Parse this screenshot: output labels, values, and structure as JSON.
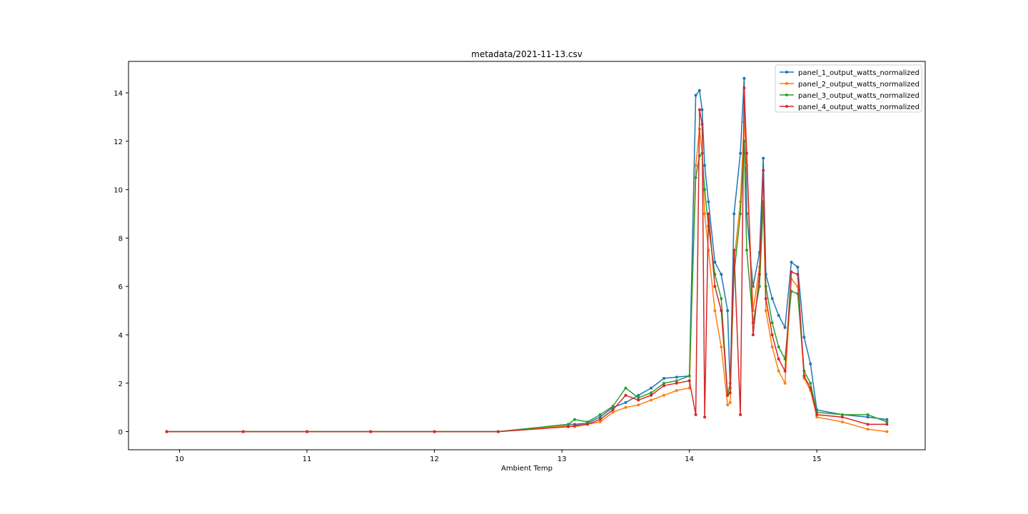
{
  "chart_data": {
    "type": "line",
    "title": "metadata/2021-11-13.csv",
    "xlabel": "Ambient Temp",
    "ylabel": "",
    "xlim": [
      9.6,
      15.85
    ],
    "ylim": [
      -0.75,
      15.3
    ],
    "xticks": [
      10,
      11,
      12,
      13,
      14,
      15
    ],
    "yticks": [
      0,
      2,
      4,
      6,
      8,
      10,
      12,
      14
    ],
    "grid": false,
    "legend_position": "top-right",
    "marker": "dot",
    "series": [
      {
        "name": "panel_1_output_watts_normalized",
        "color": "#1f77b4",
        "x": [
          9.9,
          10.5,
          11.0,
          11.5,
          12.0,
          12.5,
          13.05,
          13.1,
          13.2,
          13.3,
          13.4,
          13.5,
          13.6,
          13.7,
          13.8,
          13.9,
          14.0,
          14.05,
          14.08,
          14.1,
          14.12,
          14.15,
          14.2,
          14.25,
          14.3,
          14.32,
          14.35,
          14.4,
          14.43,
          14.45,
          14.5,
          14.55,
          14.58,
          14.6,
          14.65,
          14.7,
          14.75,
          14.8,
          14.85,
          14.9,
          14.95,
          15.0,
          15.2,
          15.4,
          15.55
        ],
        "y": [
          0,
          0,
          0,
          0,
          0,
          0,
          0.3,
          0.3,
          0.35,
          0.6,
          1.0,
          1.2,
          1.5,
          1.8,
          2.2,
          2.25,
          2.3,
          13.9,
          14.1,
          13.3,
          11.0,
          9.5,
          7.0,
          6.5,
          5.0,
          1.8,
          9.0,
          11.5,
          14.6,
          9.0,
          6.0,
          7.4,
          11.3,
          6.5,
          5.5,
          4.8,
          4.3,
          7.0,
          6.8,
          3.9,
          2.8,
          0.9,
          0.7,
          0.6,
          0.5
        ]
      },
      {
        "name": "panel_2_output_watts_normalized",
        "color": "#ff7f0e",
        "x": [
          9.9,
          10.5,
          11.0,
          11.5,
          12.0,
          12.5,
          13.05,
          13.1,
          13.2,
          13.3,
          13.4,
          13.5,
          13.6,
          13.7,
          13.8,
          13.9,
          14.0,
          14.05,
          14.08,
          14.1,
          14.12,
          14.15,
          14.2,
          14.25,
          14.3,
          14.32,
          14.35,
          14.4,
          14.43,
          14.45,
          14.5,
          14.55,
          14.58,
          14.6,
          14.65,
          14.7,
          14.75,
          14.8,
          14.85,
          14.9,
          14.95,
          15.0,
          15.2,
          15.4,
          15.55
        ],
        "y": [
          0,
          0,
          0,
          0,
          0,
          0,
          0.25,
          0.2,
          0.3,
          0.4,
          0.8,
          1.0,
          1.1,
          1.3,
          1.5,
          1.7,
          1.8,
          11.0,
          12.5,
          11.5,
          9.0,
          7.5,
          5.0,
          3.5,
          1.1,
          1.2,
          7.0,
          9.5,
          12.8,
          11.0,
          5.0,
          6.8,
          9.5,
          5.0,
          3.5,
          2.5,
          2.0,
          6.3,
          6.0,
          2.2,
          1.7,
          0.6,
          0.4,
          0.1,
          0.0
        ]
      },
      {
        "name": "panel_3_output_watts_normalized",
        "color": "#2ca02c",
        "x": [
          9.9,
          10.5,
          11.0,
          11.5,
          12.0,
          12.5,
          13.05,
          13.1,
          13.2,
          13.3,
          13.4,
          13.5,
          13.6,
          13.7,
          13.8,
          13.9,
          14.0,
          14.05,
          14.08,
          14.1,
          14.12,
          14.15,
          14.2,
          14.25,
          14.3,
          14.32,
          14.35,
          14.4,
          14.43,
          14.45,
          14.5,
          14.55,
          14.58,
          14.6,
          14.65,
          14.7,
          14.75,
          14.8,
          14.85,
          14.9,
          14.95,
          15.0,
          15.2,
          15.4,
          15.55
        ],
        "y": [
          0,
          0,
          0,
          0,
          0,
          0,
          0.3,
          0.5,
          0.4,
          0.7,
          1.05,
          1.8,
          1.4,
          1.6,
          2.0,
          2.1,
          2.3,
          10.5,
          11.4,
          11.5,
          10.0,
          8.5,
          6.5,
          5.5,
          1.5,
          2.0,
          6.5,
          9.0,
          12.0,
          7.5,
          4.5,
          6.0,
          9.5,
          6.0,
          4.5,
          3.5,
          3.0,
          5.8,
          5.7,
          2.5,
          2.0,
          0.8,
          0.7,
          0.7,
          0.4
        ]
      },
      {
        "name": "panel_4_output_watts_normalized",
        "color": "#d62728",
        "x": [
          9.9,
          10.5,
          11.0,
          11.5,
          12.0,
          12.5,
          13.05,
          13.1,
          13.2,
          13.3,
          13.4,
          13.5,
          13.6,
          13.7,
          13.8,
          13.9,
          14.0,
          14.05,
          14.08,
          14.1,
          14.12,
          14.15,
          14.2,
          14.25,
          14.3,
          14.32,
          14.35,
          14.4,
          14.43,
          14.45,
          14.5,
          14.55,
          14.58,
          14.6,
          14.65,
          14.7,
          14.75,
          14.8,
          14.85,
          14.9,
          14.95,
          15.0,
          15.2,
          15.4,
          15.55
        ],
        "y": [
          0,
          0,
          0,
          0,
          0,
          0,
          0.2,
          0.25,
          0.3,
          0.5,
          0.9,
          1.5,
          1.3,
          1.5,
          1.9,
          2.0,
          2.1,
          0.7,
          13.3,
          12.7,
          0.6,
          9.0,
          6.0,
          5.0,
          1.5,
          1.6,
          7.5,
          0.7,
          14.2,
          11.5,
          4.0,
          6.5,
          10.8,
          5.5,
          4.0,
          3.0,
          2.5,
          6.6,
          6.5,
          2.3,
          1.8,
          0.7,
          0.6,
          0.3,
          0.3
        ]
      }
    ]
  }
}
